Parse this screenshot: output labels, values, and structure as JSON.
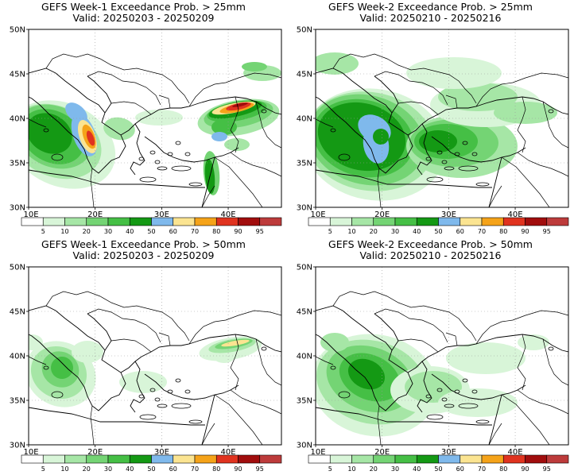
{
  "panels": [
    {
      "title": "GEFS Week-1 Exceedance Prob. > 25mm",
      "subtitle": "Valid: 20250203 - 20250209"
    },
    {
      "title": "GEFS Week-2 Exceedance Prob. > 25mm",
      "subtitle": "Valid: 20250210 - 20250216"
    },
    {
      "title": "GEFS Week-1 Exceedance Prob. > 50mm",
      "subtitle": "Valid: 20250203 - 20250209"
    },
    {
      "title": "GEFS Week-2 Exceedance Prob. > 50mm",
      "subtitle": "Valid: 20250210 - 20250216"
    }
  ],
  "axes": {
    "lat_labels": [
      "50N",
      "45N",
      "40N",
      "35N",
      "30N"
    ],
    "lon_labels": [
      "10E",
      "20E",
      "30E",
      "40E"
    ]
  },
  "colorbar": {
    "levels": [
      "5",
      "10",
      "20",
      "30",
      "40",
      "50",
      "60",
      "70",
      "80",
      "90",
      "95"
    ],
    "colors": [
      "#ffffff",
      "#d8f5d8",
      "#a6e6a6",
      "#74d474",
      "#45bf45",
      "#149914",
      "#7fb9ec",
      "#fbe491",
      "#f5a319",
      "#e0331f",
      "#a10d0d",
      "#bd3b3b"
    ]
  },
  "map_style": {
    "border_color": "#000000",
    "grid": "dotted",
    "projection": "lat-lon"
  }
}
